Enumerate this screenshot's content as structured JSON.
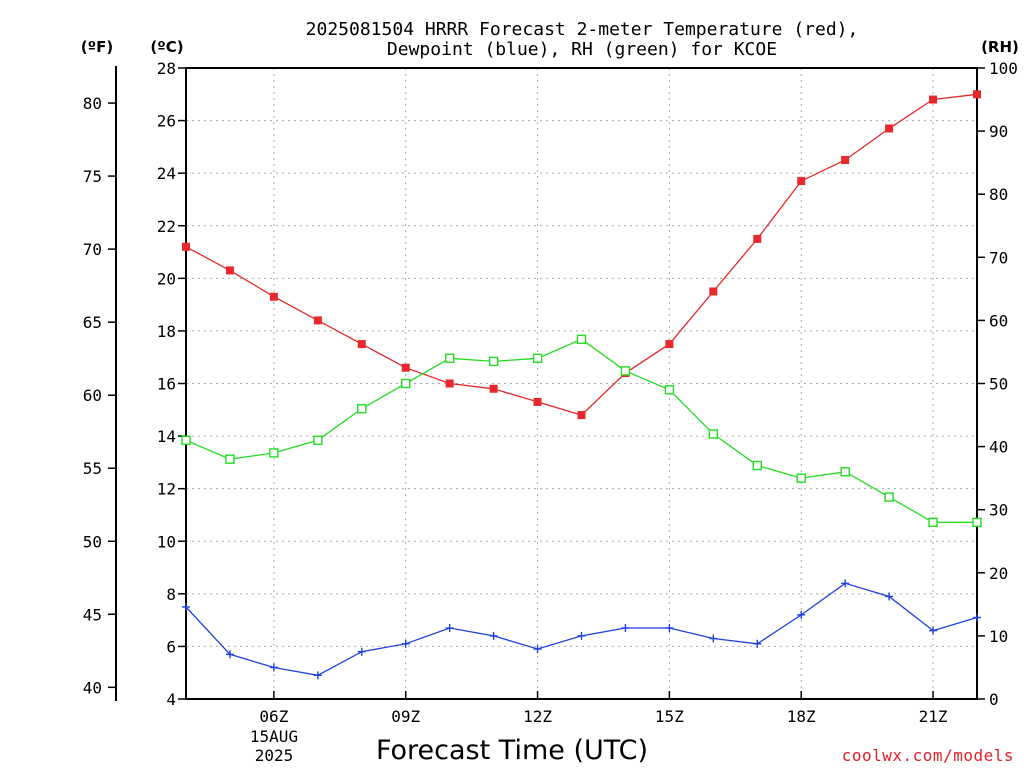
{
  "chart_data": {
    "type": "line",
    "title_line1": "2025081504 HRRR Forecast 2-meter Temperature (red),",
    "title_line2": "Dewpoint (blue), RH (green) for KCOE",
    "xlabel": "Forecast Time (UTC)",
    "unit_f": "(ºF)",
    "unit_c": "(ºC)",
    "unit_rh": "(RH)",
    "x_hours": [
      4,
      5,
      6,
      7,
      8,
      9,
      10,
      11,
      12,
      13,
      14,
      15,
      16,
      17,
      18,
      19,
      20,
      21,
      22
    ],
    "xlim": [
      4,
      22
    ],
    "x_tick_hours": [
      6,
      9,
      12,
      15,
      18,
      21
    ],
    "x_tick_labels": [
      "06Z",
      "09Z",
      "12Z",
      "15Z",
      "18Z",
      "21Z"
    ],
    "date_label_line1": "15AUG",
    "date_label_line2": "2025",
    "celsius_axis": {
      "ylim": [
        4,
        28
      ],
      "ticks": [
        4,
        6,
        8,
        10,
        12,
        14,
        16,
        18,
        20,
        22,
        24,
        26,
        28
      ]
    },
    "fahrenheit_axis": {
      "ticks": [
        40,
        45,
        50,
        55,
        60,
        65,
        70,
        75,
        80
      ]
    },
    "rh_axis": {
      "ylim": [
        0,
        100
      ],
      "ticks": [
        0,
        10,
        20,
        30,
        40,
        50,
        60,
        70,
        80,
        90,
        100
      ]
    },
    "series": [
      {
        "name": "Temperature",
        "axis": "celsius",
        "color": "#e8282a",
        "marker": "filled-square",
        "values": [
          21.2,
          20.3,
          19.3,
          18.4,
          17.5,
          16.6,
          16.0,
          15.8,
          15.3,
          14.8,
          16.4,
          17.5,
          19.5,
          21.5,
          23.7,
          24.5,
          25.7,
          26.8,
          27.0
        ]
      },
      {
        "name": "Dewpoint",
        "axis": "celsius",
        "color": "#2040e0",
        "marker": "plus",
        "values": [
          7.5,
          5.7,
          5.2,
          4.9,
          5.8,
          6.1,
          6.7,
          6.4,
          5.9,
          6.4,
          6.7,
          6.7,
          6.3,
          6.1,
          7.2,
          8.4,
          7.9,
          6.6,
          7.1
        ]
      },
      {
        "name": "RH",
        "axis": "rh",
        "color": "#22dd22",
        "marker": "open-square",
        "values": [
          41,
          38,
          39,
          41,
          46,
          50,
          54,
          53.5,
          54,
          57,
          52,
          49,
          42,
          37,
          35,
          36,
          32,
          28,
          28
        ]
      }
    ],
    "grid": true,
    "legend": "none"
  },
  "credit": "coolwx.com/models"
}
